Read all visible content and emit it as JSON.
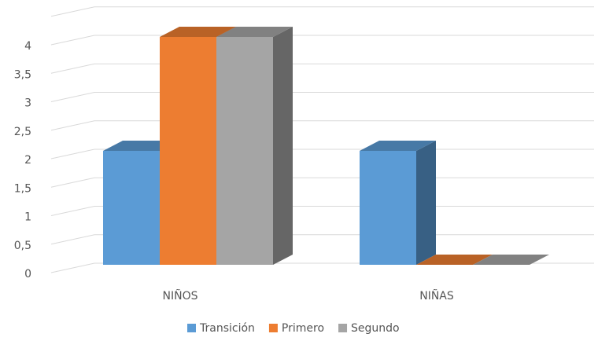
{
  "chart_data": {
    "type": "bar3d",
    "categories": [
      "NIÑOS",
      "NIÑAS"
    ],
    "series": [
      {
        "name": "Transición",
        "color": "#5b9bd5",
        "values": [
          2,
          2
        ]
      },
      {
        "name": "Primero",
        "color": "#ed7d31",
        "values": [
          4,
          0
        ]
      },
      {
        "name": "Segundo",
        "color": "#a5a5a5",
        "values": [
          4,
          0
        ]
      }
    ],
    "ylim": [
      0,
      4.5
    ],
    "yticks": [
      0,
      {
        "value": 0.5,
        "label": "0,5"
      },
      1,
      {
        "value": 1.5,
        "label": "1,5"
      },
      2,
      {
        "value": 2.5,
        "label": "2,5"
      },
      3,
      {
        "value": 3.5,
        "label": "3,5"
      },
      4
    ],
    "grid": true,
    "legend": "bottom"
  }
}
